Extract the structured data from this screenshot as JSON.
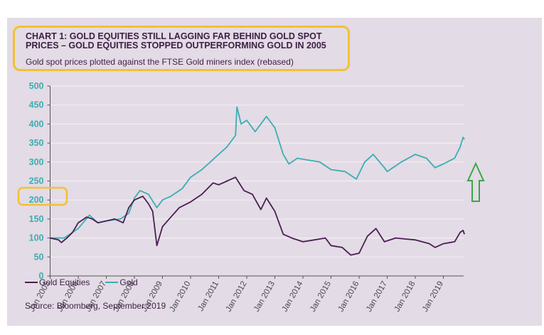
{
  "chart_data": {
    "type": "line",
    "title": "CHART 1: GOLD EQUITIES STILL LAGGING FAR BEHIND GOLD SPOT PRICES – GOLD EQUITIES STOPPED OUTPERFORMING GOLD IN 2005",
    "subtitle": "Gold spot prices plotted against the FTSE Gold miners index (rebased)",
    "source": "Source: Bloomberg, September 2019",
    "xlabel": "",
    "ylabel": "",
    "ylim": [
      0,
      500
    ],
    "yticks": [
      "0",
      "50",
      "100",
      "150",
      "200",
      "250",
      "300",
      "350",
      "400",
      "450",
      "500"
    ],
    "xticks": [
      "Jan 2005",
      "Jan 2006",
      "Jan 2007",
      "Jan 2008",
      "Jan 2009",
      "Jan 2010",
      "Jan 2011",
      "Jan 2012",
      "Jan 2013",
      "Jan 2014",
      "Jan 2015",
      "Jan 2016",
      "Jan 2017",
      "Jan 2018",
      "Jan 2019"
    ],
    "grid": true,
    "legend_placement": "bottom-left",
    "colors": {
      "equities": "#4a1f52",
      "gold": "#3aaeb2",
      "highlight": "#f2c232",
      "arrow": "#3aa64a",
      "background": "#e3dbe5"
    },
    "annotations": [
      "highlight box around 2005 start at 100",
      "green up arrow at right"
    ],
    "series": [
      {
        "name": "Gold Equities",
        "points": [
          [
            2005.0,
            100
          ],
          [
            2005.3,
            95
          ],
          [
            2005.4,
            88
          ],
          [
            2005.6,
            100
          ],
          [
            2005.8,
            115
          ],
          [
            2006.0,
            140
          ],
          [
            2006.3,
            155
          ],
          [
            2006.5,
            150
          ],
          [
            2006.7,
            140
          ],
          [
            2007.0,
            145
          ],
          [
            2007.3,
            150
          ],
          [
            2007.6,
            140
          ],
          [
            2007.8,
            180
          ],
          [
            2008.0,
            200
          ],
          [
            2008.3,
            210
          ],
          [
            2008.5,
            190
          ],
          [
            2008.65,
            170
          ],
          [
            2008.8,
            80
          ],
          [
            2009.0,
            130
          ],
          [
            2009.3,
            155
          ],
          [
            2009.6,
            180
          ],
          [
            2010.0,
            195
          ],
          [
            2010.4,
            215
          ],
          [
            2010.8,
            245
          ],
          [
            2011.0,
            240
          ],
          [
            2011.3,
            250
          ],
          [
            2011.6,
            260
          ],
          [
            2011.9,
            225
          ],
          [
            2012.2,
            215
          ],
          [
            2012.5,
            175
          ],
          [
            2012.7,
            205
          ],
          [
            2013.0,
            170
          ],
          [
            2013.3,
            110
          ],
          [
            2013.6,
            100
          ],
          [
            2014.0,
            90
          ],
          [
            2014.4,
            95
          ],
          [
            2014.8,
            100
          ],
          [
            2015.0,
            80
          ],
          [
            2015.4,
            75
          ],
          [
            2015.7,
            55
          ],
          [
            2016.0,
            60
          ],
          [
            2016.3,
            105
          ],
          [
            2016.6,
            125
          ],
          [
            2016.9,
            90
          ],
          [
            2017.3,
            100
          ],
          [
            2018.0,
            95
          ],
          [
            2018.5,
            85
          ],
          [
            2018.7,
            75
          ],
          [
            2019.0,
            85
          ],
          [
            2019.4,
            90
          ],
          [
            2019.6,
            115
          ],
          [
            2019.7,
            120
          ],
          [
            2019.75,
            110
          ]
        ]
      },
      {
        "name": "Gold",
        "points": [
          [
            2005.0,
            100
          ],
          [
            2005.5,
            100
          ],
          [
            2005.8,
            115
          ],
          [
            2006.0,
            125
          ],
          [
            2006.4,
            160
          ],
          [
            2006.7,
            140
          ],
          [
            2007.0,
            145
          ],
          [
            2007.5,
            150
          ],
          [
            2007.8,
            165
          ],
          [
            2008.0,
            205
          ],
          [
            2008.2,
            225
          ],
          [
            2008.5,
            215
          ],
          [
            2008.8,
            180
          ],
          [
            2009.0,
            200
          ],
          [
            2009.3,
            210
          ],
          [
            2009.7,
            230
          ],
          [
            2010.0,
            260
          ],
          [
            2010.4,
            280
          ],
          [
            2010.7,
            300
          ],
          [
            2011.0,
            320
          ],
          [
            2011.3,
            340
          ],
          [
            2011.6,
            370
          ],
          [
            2011.65,
            445
          ],
          [
            2011.8,
            400
          ],
          [
            2012.0,
            410
          ],
          [
            2012.3,
            380
          ],
          [
            2012.7,
            420
          ],
          [
            2013.0,
            390
          ],
          [
            2013.3,
            320
          ],
          [
            2013.5,
            295
          ],
          [
            2013.8,
            310
          ],
          [
            2014.2,
            305
          ],
          [
            2014.6,
            300
          ],
          [
            2015.0,
            280
          ],
          [
            2015.5,
            275
          ],
          [
            2015.9,
            255
          ],
          [
            2016.2,
            300
          ],
          [
            2016.5,
            320
          ],
          [
            2016.9,
            285
          ],
          [
            2017.0,
            275
          ],
          [
            2017.5,
            300
          ],
          [
            2018.0,
            320
          ],
          [
            2018.4,
            310
          ],
          [
            2018.7,
            285
          ],
          [
            2019.0,
            295
          ],
          [
            2019.4,
            310
          ],
          [
            2019.6,
            340
          ],
          [
            2019.7,
            365
          ],
          [
            2019.75,
            360
          ]
        ]
      }
    ]
  }
}
